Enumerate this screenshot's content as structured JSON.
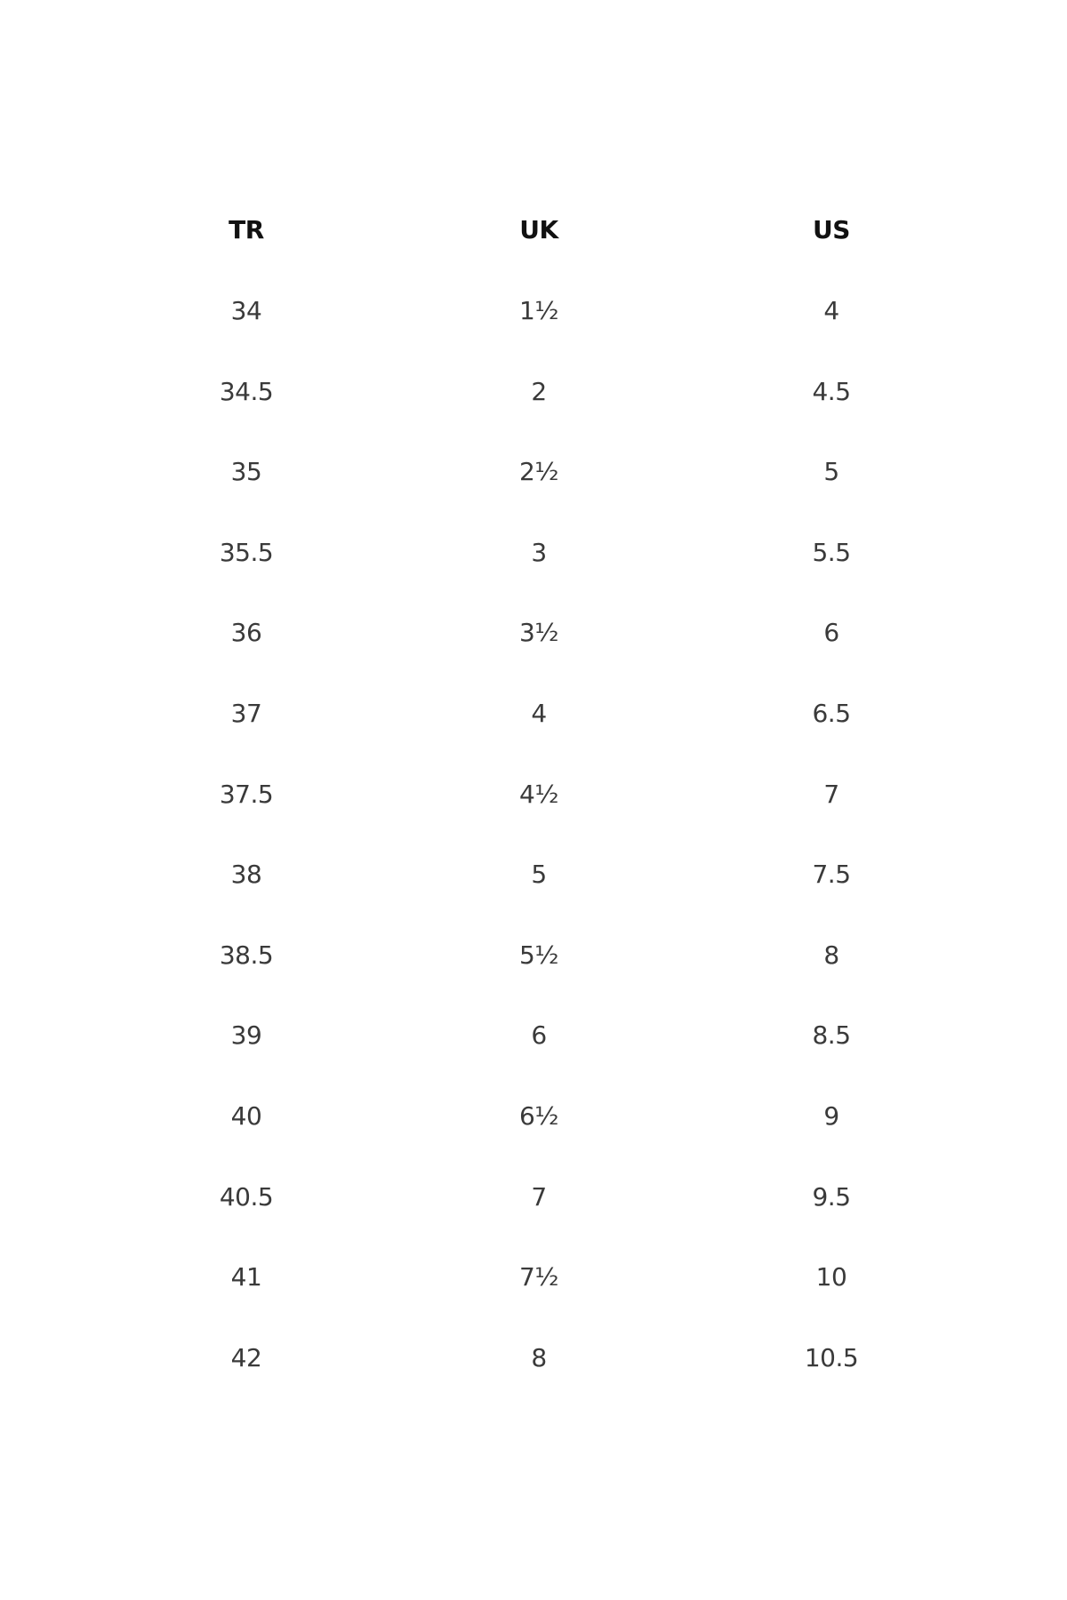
{
  "table": {
    "headers": [
      "TR",
      "UK",
      "US"
    ],
    "rows": [
      [
        "34",
        "1½",
        "4"
      ],
      [
        "34.5",
        "2",
        "4.5"
      ],
      [
        "35",
        "2½",
        "5"
      ],
      [
        "35.5",
        "3",
        "5.5"
      ],
      [
        "36",
        "3½",
        "6"
      ],
      [
        "37",
        "4",
        "6.5"
      ],
      [
        "37.5",
        "4½",
        "7"
      ],
      [
        "38",
        "5",
        "7.5"
      ],
      [
        "38.5",
        "5½",
        "8"
      ],
      [
        "39",
        "6",
        "8.5"
      ],
      [
        "40",
        "6½",
        "9"
      ],
      [
        "40.5",
        "7",
        "9.5"
      ],
      [
        "41",
        "7½",
        "10"
      ],
      [
        "42",
        "8",
        "10.5"
      ]
    ]
  }
}
